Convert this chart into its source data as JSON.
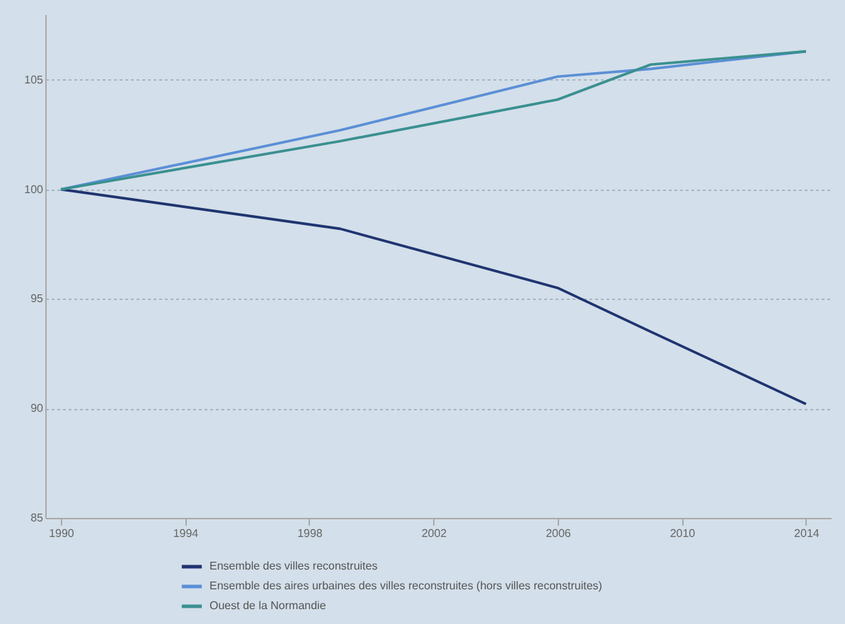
{
  "chart_data": {
    "type": "line",
    "x": [
      1990,
      1999,
      2006,
      2009,
      2014
    ],
    "series": [
      {
        "name": "Ensemble des villes reconstruites",
        "color": "#1f3470",
        "values": [
          100,
          98.2,
          95.5,
          93.5,
          90.2
        ]
      },
      {
        "name": "Ensemble des aires urbaines des villes reconstruites (hors villes reconstruites)",
        "color": "#5b8fd6",
        "values": [
          100,
          102.7,
          105.15,
          105.5,
          106.3
        ]
      },
      {
        "name": "Ouest de la Normandie",
        "color": "#3a9090",
        "values": [
          100,
          102.2,
          104.1,
          105.7,
          106.3
        ]
      }
    ],
    "xlim": [
      1989.5,
      2014.8
    ],
    "xticks": [
      1990,
      1994,
      1998,
      2002,
      2006,
      2010,
      2014
    ],
    "ylim": [
      85,
      108
    ],
    "yticks": [
      85,
      90,
      95,
      100,
      105
    ],
    "grid": "y",
    "legend": "bottom",
    "marker": "none",
    "line_style": "solid"
  }
}
